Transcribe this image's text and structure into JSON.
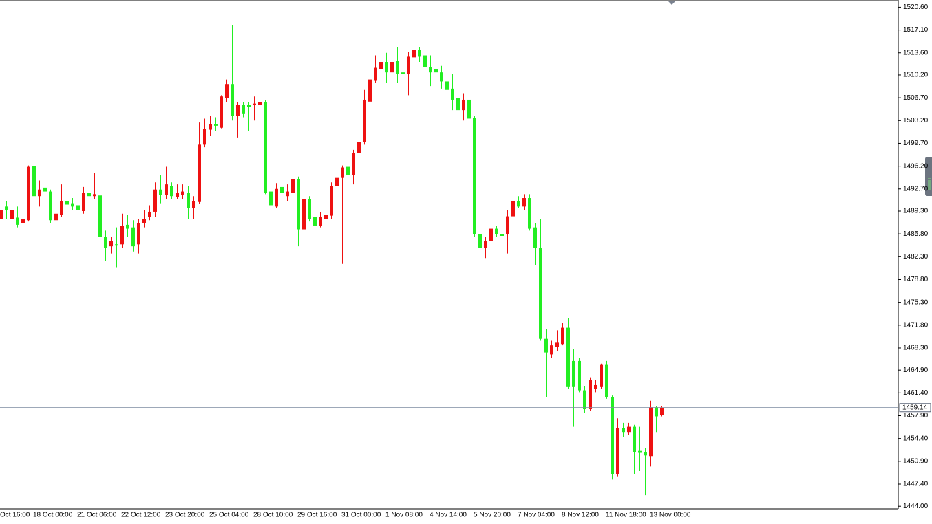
{
  "chart_data": {
    "type": "candlestick",
    "categories": [
      "Oct 16:00",
      null,
      null,
      null,
      null,
      null,
      "18 Oct 00:00",
      null,
      null,
      null,
      null,
      null,
      null,
      null,
      "21 Oct 06:00",
      null,
      null,
      null,
      null,
      null,
      null,
      null,
      "22 Oct 12:00",
      null,
      null,
      null,
      null,
      null,
      null,
      null,
      "23 Oct 20:00",
      null,
      null,
      null,
      null,
      null,
      null,
      null,
      "25 Oct 04:00",
      null,
      null,
      null,
      null,
      null,
      null,
      null,
      "28 Oct 10:00",
      null,
      null,
      null,
      null,
      null,
      null,
      null,
      "29 Oct 16:00",
      null,
      null,
      null,
      null,
      null,
      null,
      null,
      "31 Oct 00:00",
      null,
      null,
      null,
      null,
      null,
      null,
      null,
      "1 Nov 08:00",
      null,
      null,
      null,
      null,
      null,
      null,
      null,
      "4 Nov 14:00",
      null,
      null,
      null,
      null,
      null,
      null,
      null,
      "5 Nov 20:00",
      null,
      null,
      null,
      null,
      null,
      null,
      null,
      "7 Nov 04:00",
      null,
      null,
      null,
      null,
      null,
      null,
      null,
      "8 Nov 12:00",
      null,
      null,
      null,
      null,
      null,
      null,
      null,
      "11 Nov 18:00",
      null,
      null,
      null,
      null,
      null,
      null,
      null,
      "13 Nov 00:00",
      null,
      null
    ],
    "open": [
      1488.1,
      1490.0,
      1488.1,
      1488.3,
      1487.4,
      1487.9,
      1496.2,
      1491.6,
      1492.9,
      1492.3,
      1487.9,
      1488.7,
      1490.8,
      1490.5,
      1490.2,
      1489.3,
      1492.1,
      1491.6,
      1491.7,
      1485.3,
      1483.9,
      1484.2,
      1484.2,
      1487.2,
      1486.8,
      1484.2,
      1487.4,
      1488.4,
      1489.2,
      1492.6,
      1491.8,
      1493.2,
      1491.5,
      1491.8,
      1492.1,
      1489.8,
      1490.7,
      1499.5,
      1501.8,
      1502.7,
      1502.1,
      1506.7,
      1508.8,
      1503.9,
      1505.6,
      1505.6,
      1505.6,
      1505.6,
      1506.0,
      1492.3,
      1490.0,
      1493.0,
      1491.6,
      1492.1,
      1494.2,
      1486.5,
      1491.1,
      1488.4,
      1487.0,
      1488.1,
      1488.6,
      1493.2,
      1494.4,
      1496.1,
      1494.8,
      1498.2,
      1499.9,
      1506.1,
      1509.3,
      1511.1,
      1512.2,
      1510.6,
      1512.4,
      1510.6,
      1510.3,
      1512.9,
      1514.1,
      1513.2,
      1511.4,
      1511.1,
      1510.6,
      1509.2,
      1508.1,
      1506.7,
      1504.8,
      1506.4,
      1503.6,
      1485.8,
      1483.7,
      1484.7,
      1486.6,
      1485.8,
      1485.8,
      1488.5,
      1490.8,
      1490.0,
      1491.3,
      1486.8,
      1483.7,
      1469.7,
      1467.3,
      1468.5,
      1468.9,
      1471.4,
      1466.3,
      1466.3,
      1461.8,
      1458.9,
      1462.0,
      1462.3,
      1465.7,
      1460.7,
      1448.9,
      1456.0,
      1455.4,
      1456.2,
      1452.5,
      1452.3,
      1451.7,
      1459.2,
      1458.0
    ],
    "high": [
      1490.3,
      1490.8,
      1493.0,
      1490.0,
      1491.3,
      1496.3,
      1497.1,
      1494.0,
      1493.4,
      1492.6,
      1491.6,
      1493.4,
      1492.3,
      1491.3,
      1492.1,
      1493.0,
      1493.2,
      1495.1,
      1493.0,
      1486.3,
      1485.3,
      1486.8,
      1488.9,
      1488.7,
      1487.9,
      1488.1,
      1489.5,
      1490.2,
      1493.7,
      1494.8,
      1496.1,
      1493.7,
      1493.4,
      1493.4,
      1493.2,
      1491.6,
      1502.9,
      1503.5,
      1503.9,
      1503.7,
      1507.1,
      1509.5,
      1517.8,
      1506.0,
      1506.0,
      1506.0,
      1506.9,
      1508.1,
      1506.4,
      1493.7,
      1493.6,
      1493.7,
      1493.4,
      1494.4,
      1494.6,
      1491.6,
      1491.6,
      1489.2,
      1489.2,
      1490.2,
      1493.7,
      1495.3,
      1496.3,
      1496.9,
      1498.7,
      1500.8,
      1507.9,
      1514.1,
      1513.2,
      1513.4,
      1513.6,
      1513.4,
      1514.5,
      1515.9,
      1513.7,
      1514.5,
      1514.5,
      1514.0,
      1513.2,
      1514.6,
      1511.6,
      1510.6,
      1510.3,
      1507.4,
      1507.4,
      1506.9,
      1503.9,
      1486.8,
      1485.3,
      1487.0,
      1487.0,
      1486.0,
      1489.5,
      1493.8,
      1491.6,
      1491.9,
      1491.9,
      1487.4,
      1488.1,
      1471.2,
      1469.4,
      1471.0,
      1472.1,
      1472.9,
      1468.1,
      1466.8,
      1462.4,
      1463.8,
      1463.4,
      1465.9,
      1466.3,
      1461.0,
      1457.5,
      1456.8,
      1456.8,
      1456.5,
      1456.2,
      1452.9,
      1460.2,
      1459.4,
      1459.4
    ],
    "low": [
      1486.0,
      1488.1,
      1487.0,
      1486.8,
      1483.1,
      1487.7,
      1491.1,
      1490.0,
      1491.3,
      1487.4,
      1484.7,
      1488.4,
      1489.5,
      1489.5,
      1488.9,
      1488.9,
      1490.0,
      1491.1,
      1484.7,
      1481.6,
      1482.8,
      1480.7,
      1483.7,
      1485.3,
      1483.1,
      1482.8,
      1486.8,
      1487.9,
      1488.4,
      1490.5,
      1491.1,
      1491.1,
      1491.1,
      1491.1,
      1488.1,
      1488.1,
      1490.4,
      1499.1,
      1500.8,
      1501.6,
      1502.0,
      1506.0,
      1503.2,
      1500.6,
      1503.7,
      1501.6,
      1503.2,
      1503.7,
      1491.9,
      1490.0,
      1489.8,
      1491.1,
      1490.8,
      1491.6,
      1483.9,
      1483.5,
      1487.7,
      1486.6,
      1486.8,
      1487.4,
      1488.1,
      1492.3,
      1481.2,
      1494.2,
      1493.4,
      1497.6,
      1499.5,
      1504.2,
      1509.0,
      1510.6,
      1509.0,
      1509.0,
      1509.0,
      1503.5,
      1507.1,
      1512.2,
      1512.2,
      1510.9,
      1508.5,
      1509.0,
      1508.1,
      1505.8,
      1504.8,
      1504.2,
      1503.2,
      1501.6,
      1485.3,
      1479.2,
      1482.1,
      1483.1,
      1485.3,
      1483.7,
      1482.8,
      1488.1,
      1489.8,
      1489.5,
      1486.3,
      1481.0,
      1469.4,
      1460.7,
      1466.8,
      1467.8,
      1468.7,
      1462.0,
      1456.2,
      1461.5,
      1458.3,
      1458.6,
      1461.5,
      1462.0,
      1460.5,
      1448.1,
      1448.6,
      1454.6,
      1455.0,
      1448.9,
      1449.4,
      1445.7,
      1450.1,
      1455.4,
      1457.8
    ],
    "close": [
      1489.5,
      1489.5,
      1489.5,
      1487.2,
      1488.1,
      1496.1,
      1491.6,
      1492.6,
      1492.3,
      1487.9,
      1488.9,
      1490.8,
      1490.3,
      1490.0,
      1489.5,
      1492.1,
      1491.6,
      1491.9,
      1485.3,
      1483.7,
      1484.7,
      1484.0,
      1487.0,
      1486.6,
      1483.9,
      1487.4,
      1488.1,
      1489.2,
      1492.6,
      1491.8,
      1493.4,
      1491.6,
      1492.1,
      1492.3,
      1489.8,
      1490.8,
      1499.5,
      1501.9,
      1502.7,
      1502.4,
      1506.9,
      1508.8,
      1503.9,
      1505.6,
      1504.2,
      1505.3,
      1505.8,
      1506.0,
      1492.1,
      1490.2,
      1492.7,
      1492.1,
      1492.3,
      1494.2,
      1486.5,
      1491.1,
      1488.1,
      1487.0,
      1488.4,
      1488.7,
      1493.2,
      1494.4,
      1496.0,
      1494.8,
      1498.2,
      1499.9,
      1506.4,
      1509.5,
      1511.3,
      1512.2,
      1510.6,
      1512.2,
      1510.3,
      1510.3,
      1513.0,
      1514.1,
      1513.0,
      1511.4,
      1510.6,
      1510.6,
      1509.2,
      1507.9,
      1506.4,
      1504.8,
      1506.4,
      1503.5,
      1485.8,
      1483.7,
      1484.7,
      1486.6,
      1485.8,
      1485.5,
      1488.5,
      1490.8,
      1490.0,
      1491.3,
      1486.6,
      1483.7,
      1469.7,
      1467.6,
      1468.7,
      1469.1,
      1471.4,
      1462.3,
      1462.3,
      1461.8,
      1458.9,
      1463.4,
      1462.6,
      1465.7,
      1460.7,
      1448.9,
      1456.0,
      1455.4,
      1456.2,
      1452.3,
      1452.2,
      1451.8,
      1459.2,
      1457.8,
      1459.14
    ],
    "up_color": "#ee1111",
    "down_color": "#22ee22",
    "last_price": 1459.14,
    "ylim": [
      1443.6,
      1521.7
    ],
    "yticks": [
      {
        "value": 1520.6,
        "label": "1520.60"
      },
      {
        "value": 1517.1,
        "label": "1517.10"
      },
      {
        "value": 1513.6,
        "label": "1513.60"
      },
      {
        "value": 1510.2,
        "label": "1510.20"
      },
      {
        "value": 1506.7,
        "label": "1506.70"
      },
      {
        "value": 1503.2,
        "label": "1503.20"
      },
      {
        "value": 1499.7,
        "label": "1499.70"
      },
      {
        "value": 1496.2,
        "label": "1496.20"
      },
      {
        "value": 1492.7,
        "label": "1492.70"
      },
      {
        "value": 1489.3,
        "label": "1489.30"
      },
      {
        "value": 1485.8,
        "label": "1485.80"
      },
      {
        "value": 1482.3,
        "label": "1482.30"
      },
      {
        "value": 1478.8,
        "label": "1478.80"
      },
      {
        "value": 1475.3,
        "label": "1475.30"
      },
      {
        "value": 1471.8,
        "label": "1471.80"
      },
      {
        "value": 1468.3,
        "label": "1468.30"
      },
      {
        "value": 1464.9,
        "label": "1464.90"
      },
      {
        "value": 1461.4,
        "label": "1461.40"
      },
      {
        "value": 1457.9,
        "label": "1457.90"
      },
      {
        "value": 1454.4,
        "label": "1454.40"
      },
      {
        "value": 1450.9,
        "label": "1450.90"
      },
      {
        "value": 1447.4,
        "label": "1447.40"
      },
      {
        "value": 1444.0,
        "label": "1444.00"
      }
    ],
    "grid": false
  }
}
